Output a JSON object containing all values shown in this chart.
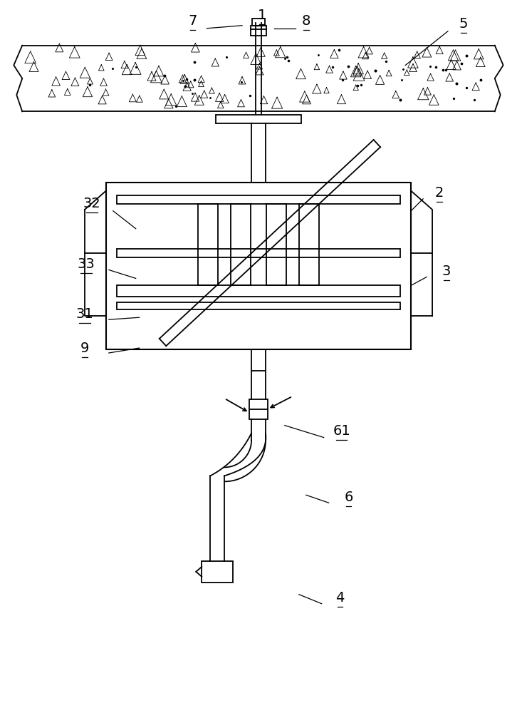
{
  "bg_color": "#ffffff",
  "line_color": "#000000",
  "fig_width": 7.26,
  "fig_height": 10.0
}
